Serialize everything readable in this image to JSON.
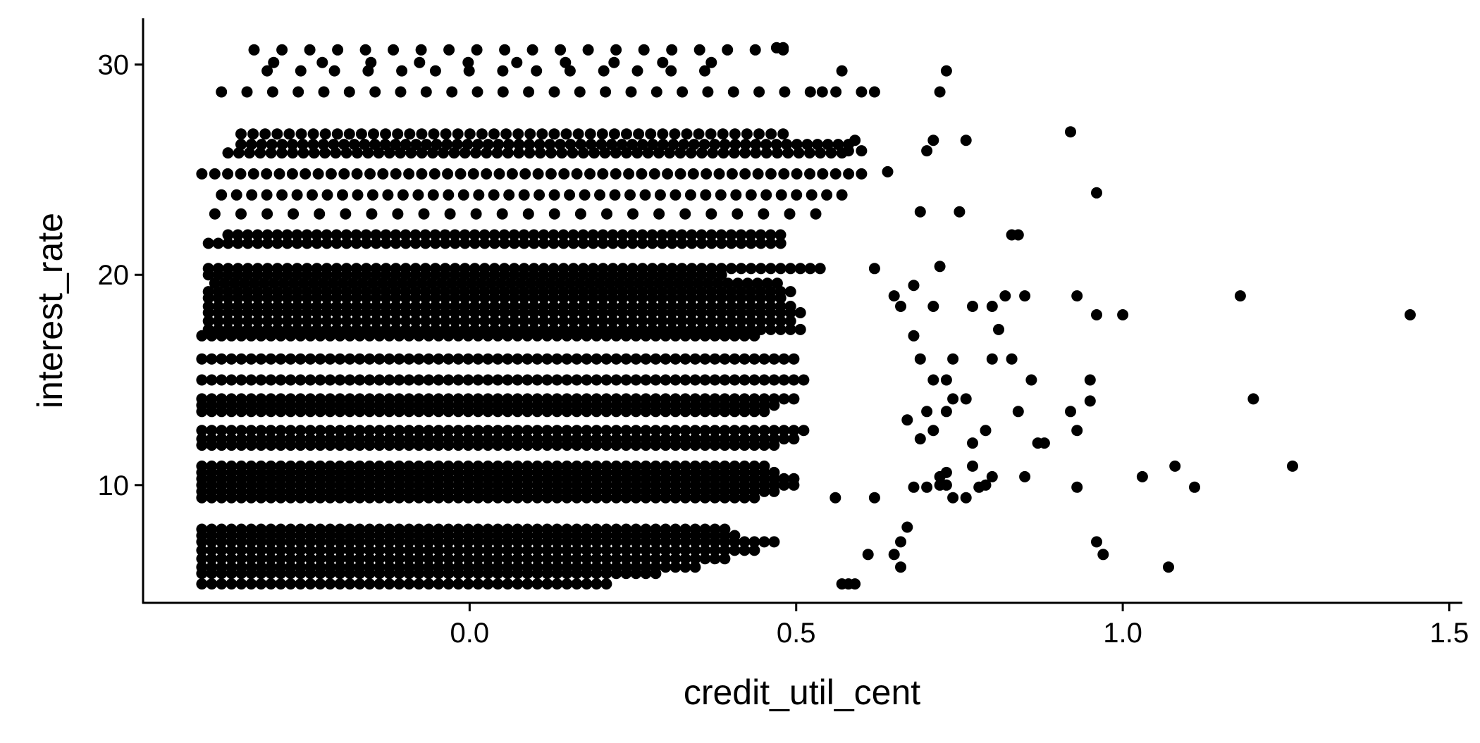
{
  "chart_data": {
    "type": "scatter",
    "title": "",
    "xlabel": "credit_util_cent",
    "ylabel": "interest_rate",
    "xlim": [
      -0.5,
      1.52
    ],
    "ylim": [
      4.4,
      32.2
    ],
    "x_ticks": [
      {
        "value": 0.0,
        "label": "0.0"
      },
      {
        "value": 0.5,
        "label": "0.5"
      },
      {
        "value": 1.0,
        "label": "1.0"
      },
      {
        "value": 1.5,
        "label": "1.5"
      }
    ],
    "y_ticks": [
      {
        "value": 10,
        "label": "10"
      },
      {
        "value": 20,
        "label": "20"
      },
      {
        "value": 30,
        "label": "30"
      }
    ],
    "grid": false,
    "legend": "none",
    "point_color": "#000000",
    "dense_bands": [
      {
        "y": 5.3,
        "x_from": -0.41,
        "x_to": 0.22
      },
      {
        "y": 5.8,
        "x_from": -0.41,
        "x_to": 0.3
      },
      {
        "y": 6.1,
        "x_from": -0.41,
        "x_to": 0.35
      },
      {
        "y": 6.5,
        "x_from": -0.41,
        "x_to": 0.4
      },
      {
        "y": 6.9,
        "x_from": -0.41,
        "x_to": 0.45
      },
      {
        "y": 7.3,
        "x_from": -0.41,
        "x_to": 0.48
      },
      {
        "y": 7.6,
        "x_from": -0.41,
        "x_to": 0.42
      },
      {
        "y": 7.9,
        "x_from": -0.41,
        "x_to": 0.4
      },
      {
        "y": 9.4,
        "x_from": -0.41,
        "x_to": 0.45
      },
      {
        "y": 9.7,
        "x_from": -0.41,
        "x_to": 0.48
      },
      {
        "y": 10.0,
        "x_from": -0.41,
        "x_to": 0.5
      },
      {
        "y": 10.3,
        "x_from": -0.41,
        "x_to": 0.5
      },
      {
        "y": 10.6,
        "x_from": -0.41,
        "x_to": 0.48
      },
      {
        "y": 10.9,
        "x_from": -0.41,
        "x_to": 0.46
      },
      {
        "y": 11.9,
        "x_from": -0.41,
        "x_to": 0.48
      },
      {
        "y": 12.2,
        "x_from": -0.41,
        "x_to": 0.5
      },
      {
        "y": 12.6,
        "x_from": -0.41,
        "x_to": 0.52
      },
      {
        "y": 13.5,
        "x_from": -0.41,
        "x_to": 0.46
      },
      {
        "y": 13.8,
        "x_from": -0.41,
        "x_to": 0.48
      },
      {
        "y": 14.1,
        "x_from": -0.41,
        "x_to": 0.5
      },
      {
        "y": 15.0,
        "x_from": -0.41,
        "x_to": 0.52
      },
      {
        "y": 16.0,
        "x_from": -0.41,
        "x_to": 0.5
      },
      {
        "y": 17.1,
        "x_from": -0.41,
        "x_to": 0.44
      },
      {
        "y": 17.4,
        "x_from": -0.4,
        "x_to": 0.52
      },
      {
        "y": 17.8,
        "x_from": -0.4,
        "x_to": 0.5
      },
      {
        "y": 18.2,
        "x_from": -0.4,
        "x_to": 0.52
      },
      {
        "y": 18.5,
        "x_from": -0.4,
        "x_to": 0.5
      },
      {
        "y": 18.9,
        "x_from": -0.4,
        "x_to": 0.48
      },
      {
        "y": 19.2,
        "x_from": -0.4,
        "x_to": 0.5
      },
      {
        "y": 19.6,
        "x_from": -0.39,
        "x_to": 0.48
      },
      {
        "y": 20.0,
        "x_from": -0.4,
        "x_to": 0.4
      },
      {
        "y": 20.3,
        "x_from": -0.4,
        "x_to": 0.55
      },
      {
        "y": 21.5,
        "x_from": -0.4,
        "x_to": 0.48
      },
      {
        "y": 21.9,
        "x_from": -0.37,
        "x_to": 0.48
      }
    ],
    "sparse_bands": [
      {
        "y": 22.9,
        "x_from": -0.39,
        "x_to": 0.53,
        "count": 24
      },
      {
        "y": 23.8,
        "x_from": -0.38,
        "x_to": 0.57,
        "count": 42
      },
      {
        "y": 24.8,
        "x_from": -0.41,
        "x_to": 0.6,
        "count": 52
      },
      {
        "y": 25.8,
        "x_from": -0.37,
        "x_to": 0.57,
        "count": 58
      },
      {
        "y": 26.2,
        "x_from": -0.35,
        "x_to": 0.58,
        "count": 60
      },
      {
        "y": 26.7,
        "x_from": -0.35,
        "x_to": 0.48,
        "count": 46
      },
      {
        "y": 28.7,
        "x_from": -0.38,
        "x_to": 0.6,
        "count": 26
      },
      {
        "y": 29.7,
        "x_from": -0.31,
        "x_to": 0.36,
        "count": 14
      },
      {
        "y": 30.1,
        "x_from": -0.3,
        "x_to": 0.37,
        "count": 10
      },
      {
        "y": 30.7,
        "x_from": -0.33,
        "x_to": 0.48,
        "count": 20
      }
    ],
    "points": [
      [
        0.57,
        5.3
      ],
      [
        0.58,
        5.3
      ],
      [
        0.59,
        5.3
      ],
      [
        0.66,
        6.1
      ],
      [
        0.61,
        6.7
      ],
      [
        0.65,
        6.7
      ],
      [
        0.66,
        7.3
      ],
      [
        0.67,
        8.0
      ],
      [
        0.56,
        9.4
      ],
      [
        0.62,
        9.4
      ],
      [
        0.68,
        9.9
      ],
      [
        0.7,
        9.9
      ],
      [
        0.72,
        10.0
      ],
      [
        0.73,
        10.0
      ],
      [
        0.74,
        9.4
      ],
      [
        0.76,
        9.4
      ],
      [
        0.78,
        9.9
      ],
      [
        0.79,
        10.0
      ],
      [
        0.72,
        10.4
      ],
      [
        0.73,
        10.6
      ],
      [
        0.77,
        10.9
      ],
      [
        0.8,
        10.4
      ],
      [
        0.85,
        10.4
      ],
      [
        0.87,
        12.0
      ],
      [
        0.88,
        12.0
      ],
      [
        0.77,
        12.0
      ],
      [
        0.79,
        12.6
      ],
      [
        0.71,
        12.6
      ],
      [
        0.69,
        12.2
      ],
      [
        0.67,
        13.1
      ],
      [
        0.7,
        13.5
      ],
      [
        0.73,
        13.5
      ],
      [
        0.84,
        13.5
      ],
      [
        0.92,
        13.5
      ],
      [
        0.93,
        12.6
      ],
      [
        0.95,
        14.0
      ],
      [
        0.74,
        14.1
      ],
      [
        0.76,
        14.1
      ],
      [
        0.71,
        15.0
      ],
      [
        0.73,
        15.0
      ],
      [
        0.69,
        16.0
      ],
      [
        0.74,
        16.0
      ],
      [
        0.8,
        16.0
      ],
      [
        0.83,
        16.0
      ],
      [
        0.86,
        15.0
      ],
      [
        0.95,
        15.0
      ],
      [
        0.68,
        17.1
      ],
      [
        0.81,
        17.4
      ],
      [
        0.8,
        18.5
      ],
      [
        0.77,
        18.5
      ],
      [
        0.71,
        18.5
      ],
      [
        0.66,
        18.5
      ],
      [
        0.68,
        19.5
      ],
      [
        0.82,
        19.0
      ],
      [
        0.85,
        19.0
      ],
      [
        0.93,
        19.0
      ],
      [
        0.96,
        18.1
      ],
      [
        1.0,
        18.1
      ],
      [
        0.62,
        20.3
      ],
      [
        0.65,
        19.0
      ],
      [
        0.83,
        21.9
      ],
      [
        0.84,
        21.9
      ],
      [
        0.72,
        20.4
      ],
      [
        0.69,
        23.0
      ],
      [
        0.75,
        23.0
      ],
      [
        0.64,
        24.9
      ],
      [
        0.7,
        25.9
      ],
      [
        0.71,
        26.4
      ],
      [
        0.76,
        26.4
      ],
      [
        0.92,
        26.8
      ],
      [
        0.96,
        23.9
      ],
      [
        0.72,
        28.7
      ],
      [
        0.73,
        29.7
      ],
      [
        0.96,
        7.3
      ],
      [
        0.97,
        6.7
      ],
      [
        1.07,
        6.1
      ],
      [
        0.93,
        9.9
      ],
      [
        1.03,
        10.4
      ],
      [
        1.08,
        10.9
      ],
      [
        1.11,
        9.9
      ],
      [
        1.2,
        14.1
      ],
      [
        1.26,
        10.9
      ],
      [
        1.18,
        19.0
      ],
      [
        1.44,
        18.1
      ],
      [
        0.62,
        28.7
      ],
      [
        0.6,
        25.9
      ],
      [
        0.59,
        26.4
      ],
      [
        0.58,
        25.9
      ],
      [
        0.54,
        28.7
      ],
      [
        0.57,
        29.7
      ],
      [
        0.48,
        30.8
      ],
      [
        0.47,
        30.8
      ]
    ]
  }
}
